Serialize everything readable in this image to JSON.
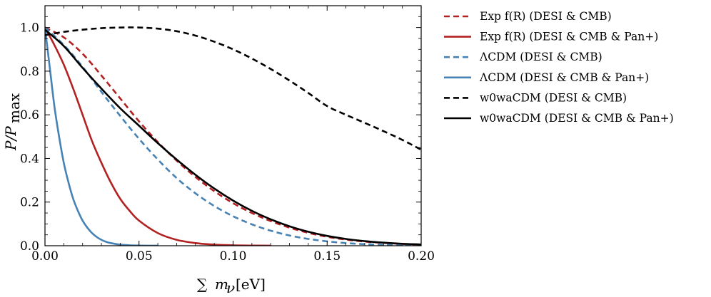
{
  "chart_data": {
    "type": "line",
    "title": "",
    "xlabel": "∑ mν [eV]",
    "ylabel": "P/Pmax",
    "xlim": [
      0.0,
      0.2
    ],
    "ylim": [
      0.0,
      1.1
    ],
    "xticks": [
      0.0,
      0.05,
      0.1,
      0.15,
      0.2
    ],
    "xtick_labels": [
      "0.00",
      "0.05",
      "0.10",
      "0.15",
      "0.20"
    ],
    "yticks": [
      0.0,
      0.2,
      0.4,
      0.6,
      0.8,
      1.0
    ],
    "ytick_labels": [
      "0.0",
      "0.2",
      "0.4",
      "0.6",
      "0.8",
      "1.0"
    ],
    "grid": false,
    "legend_position": "outside-right",
    "series": [
      {
        "name": "Exp f(R) (DESI & CMB)",
        "color": "#b22222",
        "dash": "dashed",
        "x": [
          0,
          0.01,
          0.02,
          0.03,
          0.04,
          0.05,
          0.06,
          0.07,
          0.08,
          0.09,
          0.1,
          0.11,
          0.12,
          0.13,
          0.14,
          0.15,
          0.16,
          0.17,
          0.18,
          0.19,
          0.2
        ],
        "y": [
          1.0,
          0.955,
          0.88,
          0.78,
          0.675,
          0.57,
          0.475,
          0.39,
          0.315,
          0.25,
          0.195,
          0.15,
          0.113,
          0.083,
          0.059,
          0.041,
          0.028,
          0.019,
          0.013,
          0.008,
          0.005
        ]
      },
      {
        "name": "Exp f(R) (DESI & CMB & Pan+)",
        "color": "#b22222",
        "dash": "solid",
        "x": [
          0,
          0.005,
          0.01,
          0.015,
          0.02,
          0.025,
          0.03,
          0.035,
          0.04,
          0.045,
          0.05,
          0.06,
          0.07,
          0.08,
          0.09,
          0.1,
          0.11,
          0.12
        ],
        "y": [
          1.0,
          0.92,
          0.83,
          0.72,
          0.6,
          0.48,
          0.38,
          0.29,
          0.215,
          0.16,
          0.115,
          0.058,
          0.027,
          0.012,
          0.005,
          0.002,
          0.0007,
          0.0002
        ]
      },
      {
        "name": "ΛCDM (DESI & CMB)",
        "color": "#4682b4",
        "dash": "dashed",
        "x": [
          0,
          0.01,
          0.02,
          0.03,
          0.04,
          0.05,
          0.06,
          0.07,
          0.08,
          0.09,
          0.1,
          0.11,
          0.12,
          0.13,
          0.14,
          0.15,
          0.16,
          0.17,
          0.18,
          0.19,
          0.2
        ],
        "y": [
          1.0,
          0.92,
          0.82,
          0.705,
          0.595,
          0.49,
          0.395,
          0.31,
          0.24,
          0.182,
          0.135,
          0.098,
          0.069,
          0.047,
          0.031,
          0.02,
          0.012,
          0.007,
          0.004,
          0.002,
          0.001
        ]
      },
      {
        "name": "ΛCDM (DESI & CMB & Pan+)",
        "color": "#4682b4",
        "dash": "solid",
        "x": [
          0,
          0.0025,
          0.005,
          0.0075,
          0.01,
          0.0125,
          0.015,
          0.0175,
          0.02,
          0.0225,
          0.025,
          0.0275,
          0.03,
          0.0325,
          0.035,
          0.04,
          0.045,
          0.05,
          0.055,
          0.06
        ],
        "y": [
          1.0,
          0.82,
          0.64,
          0.5,
          0.38,
          0.29,
          0.215,
          0.16,
          0.115,
          0.083,
          0.058,
          0.04,
          0.027,
          0.018,
          0.012,
          0.005,
          0.002,
          0.0008,
          0.0003,
          0.0001
        ]
      },
      {
        "name": "w0waCDM (DESI & CMB)",
        "color": "#000000",
        "dash": "dashed",
        "x": [
          0,
          0.01,
          0.02,
          0.03,
          0.04,
          0.05,
          0.06,
          0.07,
          0.08,
          0.09,
          0.1,
          0.11,
          0.12,
          0.13,
          0.14,
          0.15,
          0.16,
          0.17,
          0.18,
          0.19,
          0.2
        ],
        "y": [
          0.965,
          0.98,
          0.99,
          0.997,
          1.0,
          1.0,
          0.995,
          0.983,
          0.963,
          0.935,
          0.9,
          0.858,
          0.81,
          0.757,
          0.7,
          0.64,
          0.6,
          0.563,
          0.525,
          0.485,
          0.44
        ]
      },
      {
        "name": "w0waCDM (DESI & CMB & Pan+)",
        "color": "#000000",
        "dash": "solid",
        "x": [
          0,
          0.01,
          0.02,
          0.03,
          0.04,
          0.05,
          0.06,
          0.07,
          0.08,
          0.09,
          0.1,
          0.11,
          0.12,
          0.13,
          0.14,
          0.15,
          0.16,
          0.17,
          0.18,
          0.19,
          0.2
        ],
        "y": [
          0.99,
          0.915,
          0.815,
          0.72,
          0.63,
          0.55,
          0.47,
          0.395,
          0.325,
          0.262,
          0.207,
          0.16,
          0.121,
          0.089,
          0.064,
          0.045,
          0.031,
          0.021,
          0.014,
          0.009,
          0.006
        ]
      }
    ]
  }
}
